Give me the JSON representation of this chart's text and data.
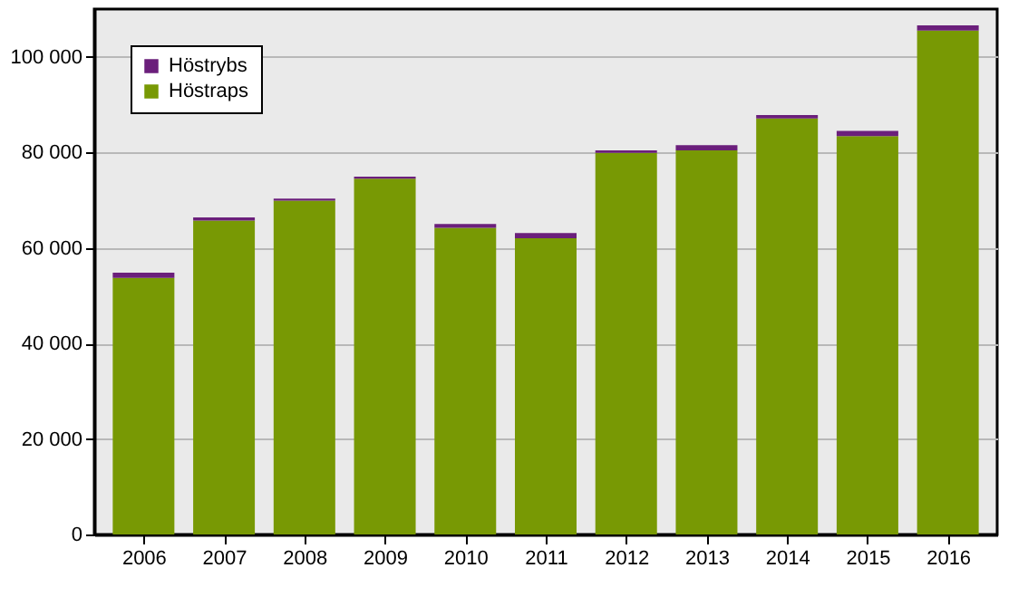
{
  "chart_data": {
    "type": "bar",
    "stacked": true,
    "categories": [
      "2006",
      "2007",
      "2008",
      "2009",
      "2010",
      "2011",
      "2012",
      "2013",
      "2014",
      "2015",
      "2016"
    ],
    "series": [
      {
        "name": "Höstraps",
        "color": "#789904",
        "values": [
          53700,
          65700,
          69900,
          74500,
          64200,
          62000,
          79900,
          80400,
          87100,
          83400,
          105500
        ]
      },
      {
        "name": "Höstrybs",
        "color": "#6b1f7b",
        "values": [
          1100,
          700,
          400,
          400,
          800,
          1100,
          500,
          1100,
          700,
          1100,
          1100
        ]
      }
    ],
    "ylim": [
      0,
      110000
    ],
    "yticks": [
      {
        "value": 0,
        "label": "0"
      },
      {
        "value": 20000,
        "label": "20 000"
      },
      {
        "value": 40000,
        "label": "40 000"
      },
      {
        "value": 60000,
        "label": "60 000"
      },
      {
        "value": 80000,
        "label": "80 000"
      },
      {
        "value": 100000,
        "label": "100 000"
      }
    ],
    "grid": "y",
    "legend": "top left"
  }
}
